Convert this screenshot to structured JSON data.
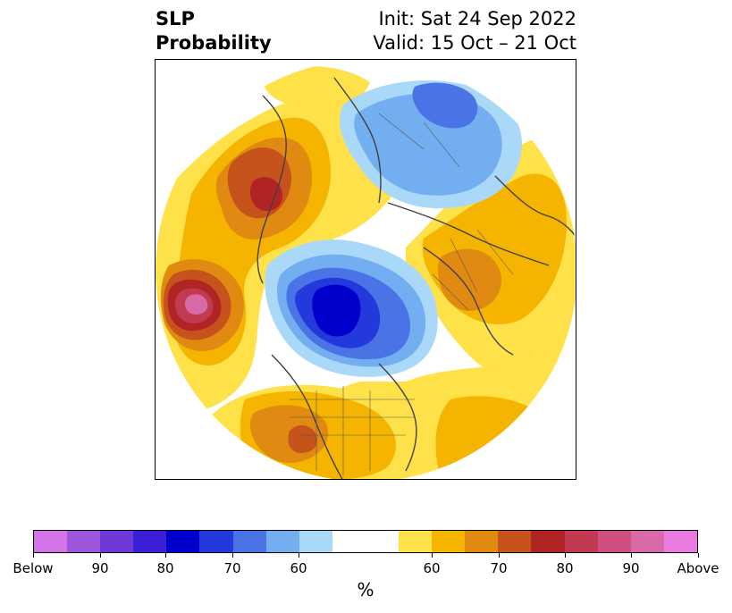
{
  "title": {
    "left_line1": "SLP",
    "left_line2": "Probability",
    "right_line1": "Init: Sat 24 Sep 2022",
    "right_line2": "Valid: 15 Oct – 21 Oct"
  },
  "map": {
    "projection": "north-polar-stereographic",
    "colors": {
      "below_90_100": "#d274e6",
      "below_80_90": "#9d55de",
      "below_70_80": "#6e39d8",
      "below_60_70": "#3a1fd6",
      "below_50_60": "#0000cc",
      "below_40_50": "#2439db",
      "below_33_40": "#4a74e6",
      "neutral": "#ffffff",
      "above_33_40": "#ffe14a",
      "above_40_50": "#f4b400",
      "above_50_60": "#e08a12",
      "above_60_70": "#c6531c",
      "above_70_80": "#b02424",
      "above_80_90": "#c23a52",
      "above_90_100": "#d86aa8"
    }
  },
  "colorbar": {
    "segments": [
      "#d274e6",
      "#9d55de",
      "#6e39d8",
      "#3a1fd6",
      "#0000cc",
      "#2439db",
      "#4a74e6",
      "#73aff0",
      "#aad8f8",
      "#ffffff",
      "#ffffff",
      "#ffe14a",
      "#f4b400",
      "#e08a12",
      "#c6531c",
      "#b02424",
      "#c23a52",
      "#cf4f80",
      "#d86aa8",
      "#e87ae0"
    ],
    "tick_labels": [
      "Below",
      "90",
      "80",
      "70",
      "60",
      "60",
      "70",
      "80",
      "90",
      "Above"
    ],
    "unit": "%"
  }
}
